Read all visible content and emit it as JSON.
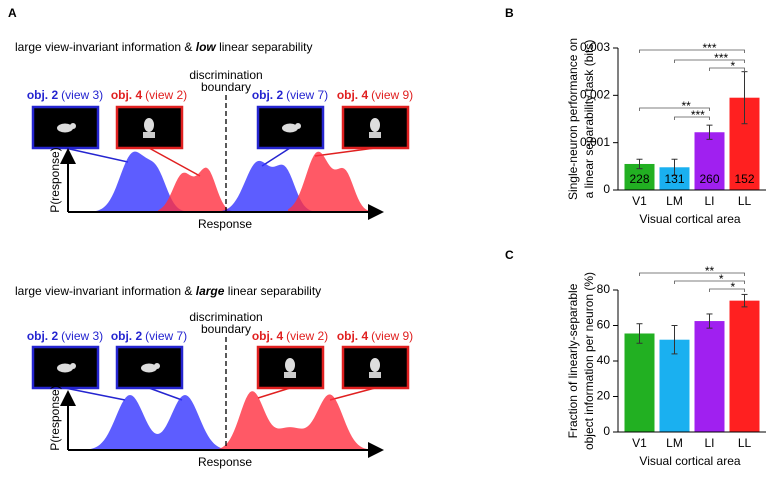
{
  "panel_a": {
    "label": "A",
    "top": {
      "title": {
        "before": "large view-invariant information & ",
        "emph": "low",
        "after": " linear separability"
      },
      "boxes": [
        {
          "obj": "obj. 2",
          "view": "(view 3)",
          "color": "#2525d0"
        },
        {
          "obj": "obj. 4",
          "view": "(view 2)",
          "color": "#e02020"
        },
        {
          "obj": "obj. 2",
          "view": "(view 7)",
          "color": "#2525d0"
        },
        {
          "obj": "obj. 4",
          "view": "(view 9)",
          "color": "#e02020"
        }
      ],
      "boundary": [
        "discrimination",
        "boundary"
      ],
      "y_label": "P(response)",
      "x_label": "Response"
    },
    "bottom": {
      "title": {
        "before": "large view-invariant information & ",
        "emph": "large",
        "after": " linear separability"
      },
      "boxes": [
        {
          "obj": "obj. 2",
          "view": "(view 3)",
          "color": "#2525d0"
        },
        {
          "obj": "obj. 2",
          "view": "(view 7)",
          "color": "#2525d0"
        },
        {
          "obj": "obj. 4",
          "view": "(view 2)",
          "color": "#e02020"
        },
        {
          "obj": "obj. 4",
          "view": "(view 9)",
          "color": "#e02020"
        }
      ],
      "boundary": [
        "discrimination",
        "boundary"
      ],
      "y_label": "P(response)",
      "x_label": "Response"
    }
  },
  "chart_data": [
    {
      "type": "bar",
      "label": "B",
      "y_label": [
        "Single-neuron performance on",
        "a linear separability task (bits)"
      ],
      "x_label": "Visual cortical area",
      "categories": [
        "V1",
        "LM",
        "LI",
        "LL"
      ],
      "colors": [
        "#22b022",
        "#1ab0f0",
        "#a020f0",
        "#ff2020"
      ],
      "values": [
        0.00055,
        0.00048,
        0.00122,
        0.00195
      ],
      "errors": [
        0.0001,
        0.00017,
        0.00015,
        0.00055
      ],
      "bar_labels": [
        228,
        131,
        260,
        152
      ],
      "ylim": [
        0,
        0.003
      ],
      "yticks": [
        0,
        0.001,
        0.002,
        0.003
      ],
      "comparisons": [
        {
          "pair": [
            "V1",
            "LL"
          ],
          "label": "***"
        },
        {
          "pair": [
            "LM",
            "LL"
          ],
          "label": "***"
        },
        {
          "pair": [
            "LI",
            "LL"
          ],
          "label": "*"
        },
        {
          "pair": [
            "V1",
            "LI"
          ],
          "label": "**"
        },
        {
          "pair": [
            "LM",
            "LI"
          ],
          "label": "***"
        }
      ]
    },
    {
      "type": "bar",
      "label": "C",
      "y_label": [
        "Fraction of linearly-separable",
        "object information per neuron (%)"
      ],
      "x_label": "Visual cortical area",
      "categories": [
        "V1",
        "LM",
        "LI",
        "LL"
      ],
      "colors": [
        "#22b022",
        "#1ab0f0",
        "#a020f0",
        "#ff2020"
      ],
      "values": [
        55.5,
        52,
        62.5,
        74
      ],
      "errors": [
        5.5,
        8,
        4,
        3.5
      ],
      "ylim": [
        0,
        80
      ],
      "yticks": [
        0,
        20,
        40,
        60,
        80
      ],
      "comparisons": [
        {
          "pair": [
            "V1",
            "LL"
          ],
          "label": "**"
        },
        {
          "pair": [
            "LM",
            "LL"
          ],
          "label": "*"
        },
        {
          "pair": [
            "LI",
            "LL"
          ],
          "label": "*"
        }
      ]
    }
  ]
}
